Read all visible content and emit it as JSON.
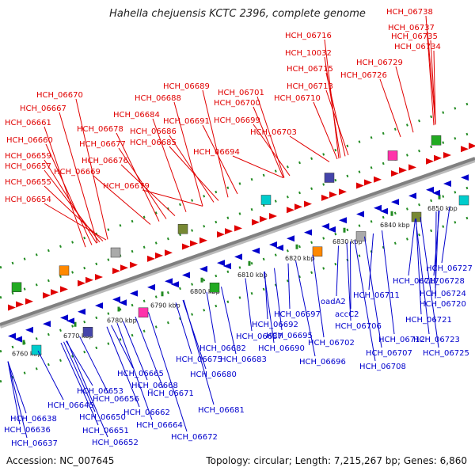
{
  "title": "Hahella chejuensis KCTC 2396, complete genome",
  "footer": {
    "accession": "Accession: NC_007645",
    "stats": "Topology: circular; Length: 7,215,267 bp; Genes: 6,860"
  },
  "colors": {
    "top_strand": "#e00000",
    "bottom_strand": "#0000cc",
    "backbone": "#808080",
    "dots": "#228b22"
  },
  "ticks": [
    "6760 kbp",
    "6770 kbp",
    "6780 kbp",
    "6790 kbp",
    "6800 kbp",
    "6810 kbp",
    "6820 kbp",
    "6830 kbp",
    "6840 kbp",
    "6850 kbp"
  ],
  "top_labels": [
    "HCH_06738",
    "HCH_06737",
    "HCH_06735",
    "HCH_06734",
    "HCH_06716",
    "HCH_10032",
    "HCH_06729",
    "HCH_06715",
    "HCH_06726",
    "HCH_06713",
    "HCH_06710",
    "HCH_06689",
    "HCH_06701",
    "HCH_06688",
    "HCH_06700",
    "HCH_06670",
    "HCH_06684",
    "HCH_06691",
    "HCH_06699",
    "HCH_06667",
    "HCH_06703",
    "HCH_06661",
    "HCH_06678",
    "HCH_06686",
    "HCH_06660",
    "HCH_06677",
    "HCH_06685",
    "HCH_06694",
    "HCH_06659",
    "HCH_06676",
    "HCH_06657",
    "HCH_06669",
    "HCH_06655",
    "HCH_06679",
    "HCH_06654"
  ],
  "bottom_labels": [
    "HCH_06727",
    "HCH_06717",
    "HCH_06728",
    "HCH_06711",
    "HCH_06724",
    "oadA2",
    "HCH_06720",
    "accC2",
    "HCH_06697",
    "HCH_06692",
    "HCH_06706",
    "HCH_06721",
    "HCH_06687",
    "HCH_06695",
    "HCH_06682",
    "HCH_06690",
    "HCH_06702",
    "HCH_06712",
    "HCH_06723",
    "HCH_06683",
    "HCH_06675",
    "HCH_06707",
    "HCH_06725",
    "HCH_06696",
    "HCH_06708",
    "HCH_06665",
    "HCH_06680",
    "HCH_06668",
    "HCH_06645",
    "HCH_06653",
    "HCH_06671",
    "HCH_06656",
    "HCH_06681",
    "HCH_06650",
    "HCH_06662",
    "HCH_06638",
    "HCH_06664",
    "HCH_06636",
    "HCH_06651",
    "HCH_06672",
    "HCH_06637",
    "HCH_06652"
  ]
}
